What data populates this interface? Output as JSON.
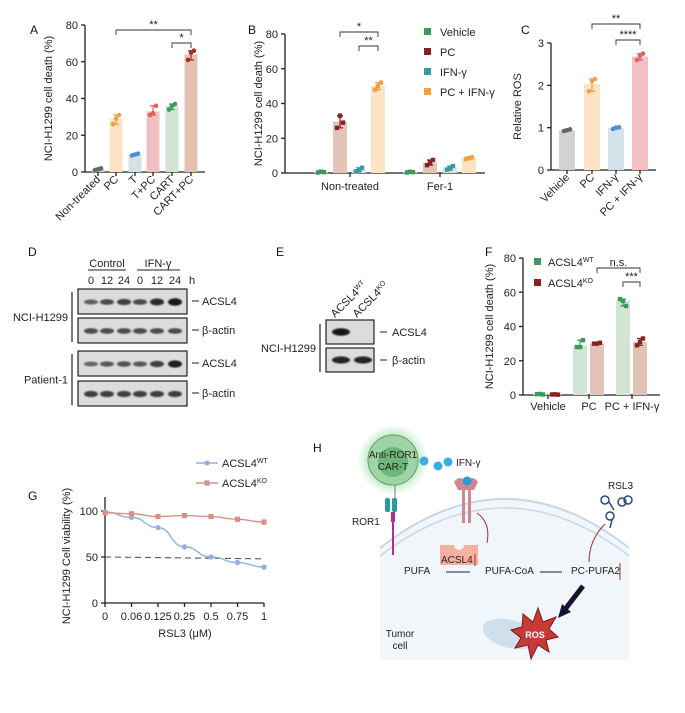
{
  "panels": {
    "A": "A",
    "B": "B",
    "C": "C",
    "D": "D",
    "E": "E",
    "F": "F",
    "G": "G",
    "H": "H"
  },
  "chart_data": [
    {
      "id": "A",
      "type": "bar",
      "title": "",
      "xlabel": "",
      "ylabel": "NCI-H1299 cell death (%)",
      "ylim": [
        0,
        80
      ],
      "yticks": [
        0,
        20,
        40,
        60,
        80
      ],
      "categories": [
        "Non-treated",
        "PC",
        "T",
        "T+PC",
        "CART",
        "CART+PC"
      ],
      "values": [
        1.5,
        29,
        9.5,
        33,
        36,
        64
      ],
      "replicates": [
        [
          1,
          2,
          1.5
        ],
        [
          26,
          31,
          29
        ],
        [
          9,
          10,
          9.5
        ],
        [
          31,
          36,
          32
        ],
        [
          34,
          37,
          36
        ],
        [
          61,
          66,
          65
        ]
      ],
      "colors": [
        "#666666",
        "#f0a040",
        "#4a90d0",
        "#e06060",
        "#3a9a5a",
        "#a03030"
      ],
      "fills": [
        "#cfcfcf",
        "#fbe3c4",
        "#d3e2e8",
        "#f2c0c2",
        "#d2e5d5",
        "#e2c0b2"
      ],
      "significance": [
        {
          "label": "**",
          "from": 1,
          "to": 5,
          "level": 0
        },
        {
          "label": "*",
          "from": 4,
          "to": 5,
          "level": 1
        }
      ]
    },
    {
      "id": "B",
      "type": "bar",
      "title": "",
      "xlabel": "",
      "ylabel": "NCI-H1299 cell death (%)",
      "ylim": [
        0,
        80
      ],
      "yticks": [
        0,
        20,
        40,
        60,
        80
      ],
      "categories": [
        "Non-treated",
        "Fer-1"
      ],
      "legend_position": "top-right",
      "series": [
        {
          "name": "Vehicle",
          "color": "#3a9a5a",
          "fill": "#cfe6d4",
          "values": [
            0.5,
            0.5
          ],
          "replicates": [
            [
              0.3,
              0.5,
              0.8
            ],
            [
              0.3,
              0.5,
              0.7
            ]
          ]
        },
        {
          "name": "PC",
          "color": "#8b2020",
          "fill": "#e2c3b8",
          "values": [
            29.5,
            6
          ],
          "replicates": [
            [
              26,
              29,
              33
            ],
            [
              4.5,
              7.5,
              6
            ]
          ]
        },
        {
          "name": "IFN-γ",
          "color": "#3a9a9a",
          "fill": "#d3e6e6",
          "values": [
            1.8,
            2.8
          ],
          "replicates": [
            [
              1,
              3,
              1.5
            ],
            [
              2,
              4,
              2.5
            ]
          ]
        },
        {
          "name": "PC + IFN-γ",
          "color": "#f0a040",
          "fill": "#fbe3c4",
          "values": [
            50,
            8.5
          ],
          "replicates": [
            [
              48,
              52,
              50
            ],
            [
              8,
              9,
              8.5
            ]
          ]
        }
      ],
      "significance": [
        {
          "label": "*",
          "from": 1,
          "to": 3,
          "level": 0
        },
        {
          "label": "**",
          "from": 2,
          "to": 3,
          "level": 1
        }
      ]
    },
    {
      "id": "C",
      "type": "bar",
      "title": "",
      "xlabel": "",
      "ylabel": "Relative ROS",
      "ylim": [
        0,
        3
      ],
      "yticks": [
        0,
        1,
        2,
        3
      ],
      "categories": [
        "Vehicle",
        "PC",
        "IFN-γ",
        "PC + IFN-γ"
      ],
      "values": [
        0.94,
        2.03,
        0.99,
        2.68
      ],
      "replicates": [
        [
          0.92,
          0.96,
          0.94
        ],
        [
          1.86,
          2.15,
          2.1
        ],
        [
          0.97,
          1.01,
          1.0
        ],
        [
          2.6,
          2.75,
          2.7
        ]
      ],
      "colors": [
        "#666666",
        "#f0a040",
        "#4a90d0",
        "#e06060"
      ],
      "fills": [
        "#d2d2d2",
        "#fbe3c4",
        "#d3e2e8",
        "#f2c0c2"
      ],
      "significance": [
        {
          "label": "**",
          "from": 1,
          "to": 3,
          "level": 0
        },
        {
          "label": "****",
          "from": 2,
          "to": 3,
          "level": 1
        }
      ]
    },
    {
      "id": "F",
      "type": "bar",
      "title": "",
      "xlabel": "",
      "ylabel": "NCI-H1299 cell death (%)",
      "ylim": [
        0,
        80
      ],
      "yticks": [
        0,
        20,
        40,
        60,
        80
      ],
      "categories": [
        "Vehicle",
        "PC",
        "PC + IFN-γ"
      ],
      "legend_position": "top-left",
      "series": [
        {
          "name": "ACSL4",
          "sup": "WT",
          "color": "#3a9a5a",
          "fill": "#d2e5d5",
          "values": [
            0.5,
            29,
            55
          ],
          "replicates": [
            [
              0.5,
              0.3,
              0.6
            ],
            [
              28,
              32,
              28
            ],
            [
              56,
              52,
              55
            ]
          ]
        },
        {
          "name": "ACSL4",
          "sup": "KO",
          "color": "#8b2020",
          "fill": "#e2c3b8",
          "values": [
            0.3,
            30,
            31
          ],
          "replicates": [
            [
              0.3,
              0.2,
              0.4
            ],
            [
              30,
              30.5,
              30
            ],
            [
              29,
              33,
              31
            ]
          ]
        }
      ],
      "significance": [
        {
          "label": "n.s.",
          "from": 3,
          "to": 5,
          "level": 0
        },
        {
          "label": "***",
          "from": 4,
          "to": 5,
          "level": 1
        }
      ]
    },
    {
      "id": "G",
      "type": "line",
      "title": "",
      "xlabel": "RSL3 (μM)",
      "ylabel": "NCI-H1299 Cell viability (%)",
      "ylim": [
        0,
        115
      ],
      "yticks": [
        0,
        50,
        100
      ],
      "x": [
        "0",
        "0.06",
        "0.125",
        "0.25",
        "0.5",
        "0.75",
        "1"
      ],
      "legend_position": "top-right",
      "series": [
        {
          "name": "ACSL4",
          "sup": "WT",
          "color": "#8fb0e0",
          "marker": "circle",
          "values": [
            99,
            93,
            82,
            61,
            50,
            44,
            39
          ],
          "err": [
            1,
            2,
            1,
            3,
            1,
            3,
            1
          ]
        },
        {
          "name": "ACSL4",
          "sup": "KO",
          "color": "#d99088",
          "marker": "square",
          "values": [
            98,
            97,
            94,
            95,
            94,
            91,
            88
          ],
          "err": [
            1,
            1,
            2,
            1,
            1,
            2,
            3
          ]
        }
      ],
      "reference_line": {
        "values": [
          50,
          48
        ],
        "style": "dashed"
      }
    }
  ],
  "blot_D": {
    "groups": [
      "Control",
      "IFN-γ"
    ],
    "lanes": [
      "0",
      "12",
      "24",
      "0",
      "12",
      "24"
    ],
    "unit": "h",
    "rows": [
      {
        "cell": "NCI-H1299",
        "bands": [
          {
            "label": "ACSL4",
            "intensity": [
              0.45,
              0.6,
              0.7,
              0.6,
              0.85,
              1.0
            ]
          },
          {
            "label": "β-actin",
            "intensity": [
              0.6,
              0.6,
              0.6,
              0.6,
              0.6,
              0.6
            ]
          }
        ]
      },
      {
        "cell": "Patient-1",
        "bands": [
          {
            "label": "ACSL4",
            "intensity": [
              0.4,
              0.5,
              0.55,
              0.5,
              0.7,
              0.95
            ]
          },
          {
            "label": "β-actin",
            "intensity": [
              0.7,
              0.7,
              0.7,
              0.7,
              0.7,
              0.7
            ]
          }
        ]
      }
    ]
  },
  "blot_E": {
    "lanes": [
      {
        "base": "ACSL4",
        "sup": "WT"
      },
      {
        "base": "ACSL4",
        "sup": "KO"
      }
    ],
    "cell": "NCI-H1299",
    "bands": [
      {
        "label": "ACSL4",
        "intensity": [
          1.0,
          0.0
        ]
      },
      {
        "label": "β-actin",
        "intensity": [
          0.9,
          0.9
        ]
      }
    ]
  },
  "diagram_H": {
    "car_t": [
      "Anti-ROR1",
      "CAR-T"
    ],
    "ifn": "IFN-γ",
    "ror1": "ROR1",
    "rsl3": "RSL3",
    "acsl4": "ACSL4",
    "pufa": "PUFA",
    "pufa_coa": "PUFA-CoA",
    "pc_pufa2": "PC-PUFA2",
    "ros": "ROS",
    "tumor_cell": [
      "Tumor",
      "cell"
    ]
  }
}
